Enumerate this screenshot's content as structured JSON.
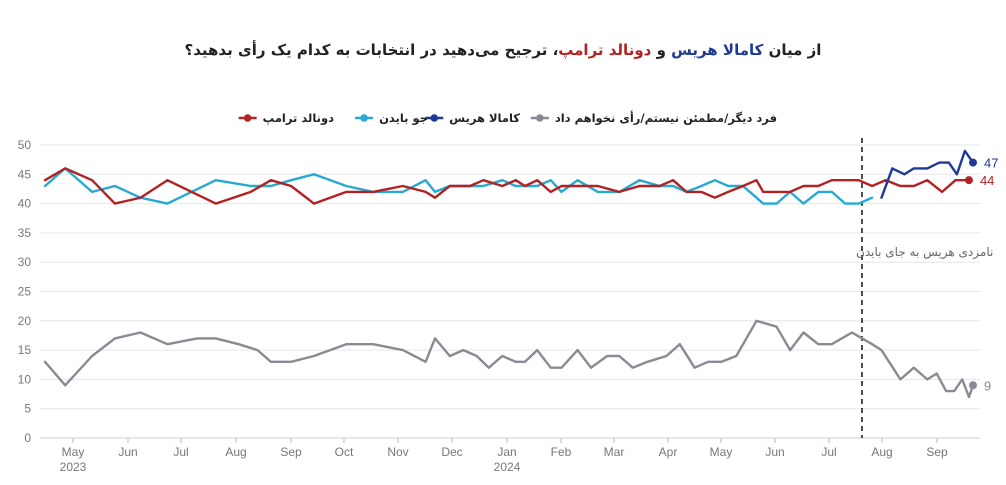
{
  "title": {
    "parts": [
      {
        "text": "از میان ",
        "color": "#222222"
      },
      {
        "text": "کامالا هریس",
        "color": "#1f3a93"
      },
      {
        "text": " و ",
        "color": "#222222"
      },
      {
        "text": "دونالد ترامپ",
        "color": "#b22222"
      },
      {
        "text": "، ترجیح می‌دهید در انتخابات به کدام یک رأی بدهید؟",
        "color": "#222222"
      }
    ]
  },
  "chart_data": {
    "type": "line",
    "title": "از میان کامالا هریس و دونالد ترامپ، ترجیح می‌دهید در انتخابات به کدام یک رأی بدهید؟",
    "ylim": [
      0,
      50
    ],
    "yticks": [
      "0",
      "5",
      "10",
      "15",
      "20",
      "25",
      "30",
      "35",
      "40",
      "45",
      "50"
    ],
    "grid": true,
    "legend_position": "top",
    "x_axis": {
      "months": [
        "May",
        "Jun",
        "Jul",
        "Aug",
        "Sep",
        "Oct",
        "Nov",
        "Dec",
        "Jan",
        "Feb",
        "Mar",
        "Apr",
        "May",
        "Jun",
        "Jul",
        "Aug",
        "Sep"
      ],
      "years": [
        "2023",
        "2024"
      ]
    },
    "series": [
      {
        "name": "دونالد ترامپ",
        "color": "#b22222",
        "dot_color": "#b22222",
        "end_label": "44",
        "points": [
          [
            "2023-04-10",
            44
          ],
          [
            "2023-04-25",
            46
          ],
          [
            "2023-05-15",
            44
          ],
          [
            "2023-06-01",
            40
          ],
          [
            "2023-06-20",
            41
          ],
          [
            "2023-07-10",
            44
          ],
          [
            "2023-08-15",
            40
          ],
          [
            "2023-09-10",
            42
          ],
          [
            "2023-09-25",
            44
          ],
          [
            "2023-10-10",
            43
          ],
          [
            "2023-10-27",
            40
          ],
          [
            "2023-11-20",
            42
          ],
          [
            "2023-12-10",
            42
          ],
          [
            "2024-01-01",
            43
          ],
          [
            "2024-01-18",
            42
          ],
          [
            "2024-01-25",
            41
          ],
          [
            "2024-02-05",
            43
          ],
          [
            "2024-02-20",
            43
          ],
          [
            "2024-03-01",
            44
          ],
          [
            "2024-03-15",
            43
          ],
          [
            "2024-03-25",
            44
          ],
          [
            "2024-04-01",
            43
          ],
          [
            "2024-04-10",
            44
          ],
          [
            "2024-04-20",
            42
          ],
          [
            "2024-04-28",
            43
          ],
          [
            "2024-05-10",
            43
          ],
          [
            "2024-05-25",
            43
          ],
          [
            "2024-06-10",
            42
          ],
          [
            "2024-06-25",
            43
          ],
          [
            "2024-07-10",
            43
          ],
          [
            "2024-07-20",
            44
          ],
          [
            "2024-07-30",
            42
          ],
          [
            "2024-08-10",
            42
          ],
          [
            "2024-08-20",
            41
          ],
          [
            "2024-08-30",
            42
          ],
          [
            "2024-09-10",
            43
          ],
          [
            "2024-09-20",
            44
          ],
          [
            "2024-09-25",
            42
          ],
          [
            "2024-10-05",
            42
          ],
          [
            "2024-10-15",
            42
          ],
          [
            "2024-10-25",
            43
          ],
          [
            "2024-11-05",
            43
          ],
          [
            "2024-11-15",
            44
          ],
          [
            "2024-11-25",
            44
          ],
          [
            "2024-12-05",
            44
          ],
          [
            "2024-12-15",
            43
          ],
          [
            "2024-12-25",
            44
          ],
          [
            "2025-01-05",
            43
          ],
          [
            "2025-01-15",
            43
          ],
          [
            "2025-01-25",
            44
          ],
          [
            "2025-02-05",
            42
          ],
          [
            "2025-02-15",
            44
          ],
          [
            "2025-02-25",
            44
          ]
        ]
      },
      {
        "name": "جو بایدن",
        "color": "#27a9d2",
        "dot_color": "#27a9d2",
        "end_label": "",
        "points": [
          [
            "2023-04-10",
            43
          ],
          [
            "2023-04-25",
            46
          ],
          [
            "2023-05-15",
            42
          ],
          [
            "2023-06-01",
            43
          ],
          [
            "2023-06-20",
            41
          ],
          [
            "2023-07-10",
            40
          ],
          [
            "2023-08-15",
            44
          ],
          [
            "2023-09-10",
            43
          ],
          [
            "2023-09-25",
            43
          ],
          [
            "2023-10-10",
            44
          ],
          [
            "2023-10-27",
            45
          ],
          [
            "2023-11-20",
            43
          ],
          [
            "2023-12-10",
            42
          ],
          [
            "2024-01-01",
            42
          ],
          [
            "2024-01-18",
            44
          ],
          [
            "2024-01-25",
            42
          ],
          [
            "2024-02-05",
            43
          ],
          [
            "2024-02-20",
            43
          ],
          [
            "2024-03-01",
            43
          ],
          [
            "2024-03-15",
            44
          ],
          [
            "2024-03-25",
            43
          ],
          [
            "2024-04-01",
            43
          ],
          [
            "2024-04-10",
            43
          ],
          [
            "2024-04-20",
            44
          ],
          [
            "2024-04-28",
            42
          ],
          [
            "2024-05-10",
            44
          ],
          [
            "2024-05-25",
            42
          ],
          [
            "2024-06-10",
            42
          ],
          [
            "2024-06-25",
            44
          ],
          [
            "2024-07-10",
            43
          ],
          [
            "2024-07-20",
            43
          ],
          [
            "2024-07-30",
            42
          ],
          [
            "2024-08-10",
            43
          ],
          [
            "2024-08-20",
            44
          ],
          [
            "2024-08-30",
            43
          ],
          [
            "2024-09-10",
            43
          ],
          [
            "2024-09-20",
            41
          ],
          [
            "2024-09-25",
            40
          ],
          [
            "2024-10-05",
            40
          ],
          [
            "2024-10-15",
            42
          ],
          [
            "2024-10-25",
            40
          ],
          [
            "2024-11-05",
            42
          ],
          [
            "2024-11-15",
            42
          ],
          [
            "2024-11-25",
            40
          ],
          [
            "2024-12-05",
            40
          ],
          [
            "2024-12-15",
            41
          ]
        ]
      },
      {
        "name": "کامالا هریس",
        "color": "#1f3a93",
        "dot_color": "#1f3a93",
        "end_label": "47",
        "points": [
          [
            "2024-12-22",
            41
          ],
          [
            "2024-12-30",
            46
          ],
          [
            "2025-01-08",
            45
          ],
          [
            "2025-01-15",
            46
          ],
          [
            "2025-01-25",
            46
          ],
          [
            "2025-02-03",
            47
          ],
          [
            "2025-02-10",
            47
          ],
          [
            "2025-02-16",
            45
          ],
          [
            "2025-02-22",
            49
          ],
          [
            "2025-02-28",
            47
          ]
        ]
      },
      {
        "name": "فرد دیگر/مطمئن نیستم/رأی نخواهم داد",
        "color": "#8a8a95",
        "dot_color": "#8a8a95",
        "end_label": "9",
        "points": [
          [
            "2023-04-10",
            13
          ],
          [
            "2023-04-25",
            9
          ],
          [
            "2023-05-15",
            14
          ],
          [
            "2023-06-01",
            17
          ],
          [
            "2023-06-20",
            18
          ],
          [
            "2023-07-10",
            16
          ],
          [
            "2023-08-01",
            17
          ],
          [
            "2023-08-15",
            17
          ],
          [
            "2023-09-01",
            16
          ],
          [
            "2023-09-15",
            15
          ],
          [
            "2023-09-25",
            13
          ],
          [
            "2023-10-10",
            13
          ],
          [
            "2023-10-27",
            14
          ],
          [
            "2023-11-20",
            16
          ],
          [
            "2023-12-10",
            16
          ],
          [
            "2024-01-01",
            15
          ],
          [
            "2024-01-18",
            13
          ],
          [
            "2024-01-25",
            17
          ],
          [
            "2024-02-05",
            14
          ],
          [
            "2024-02-15",
            15
          ],
          [
            "2024-02-25",
            14
          ],
          [
            "2024-03-05",
            12
          ],
          [
            "2024-03-15",
            14
          ],
          [
            "2024-03-25",
            13
          ],
          [
            "2024-04-01",
            13
          ],
          [
            "2024-04-10",
            15
          ],
          [
            "2024-04-20",
            12
          ],
          [
            "2024-04-28",
            12
          ],
          [
            "2024-05-10",
            15
          ],
          [
            "2024-05-20",
            12
          ],
          [
            "2024-06-01",
            14
          ],
          [
            "2024-06-10",
            14
          ],
          [
            "2024-06-20",
            12
          ],
          [
            "2024-07-01",
            13
          ],
          [
            "2024-07-15",
            14
          ],
          [
            "2024-07-25",
            16
          ],
          [
            "2024-08-05",
            12
          ],
          [
            "2024-08-15",
            13
          ],
          [
            "2024-08-25",
            13
          ],
          [
            "2024-09-05",
            14
          ],
          [
            "2024-09-20",
            20
          ],
          [
            "2024-10-05",
            19
          ],
          [
            "2024-10-15",
            15
          ],
          [
            "2024-10-25",
            18
          ],
          [
            "2024-11-05",
            16
          ],
          [
            "2024-11-15",
            16
          ],
          [
            "2024-11-30",
            18
          ],
          [
            "2024-12-15",
            16
          ],
          [
            "2024-12-22",
            15
          ],
          [
            "2025-01-05",
            10
          ],
          [
            "2025-01-15",
            12
          ],
          [
            "2025-01-25",
            10
          ],
          [
            "2025-02-01",
            11
          ],
          [
            "2025-02-08",
            8
          ],
          [
            "2025-02-14",
            8
          ],
          [
            "2025-02-20",
            10
          ],
          [
            "2025-02-25",
            7
          ],
          [
            "2025-02-28",
            9
          ]
        ]
      }
    ],
    "annotations": [
      {
        "text": "نامزدی هریس به جای بایدن",
        "x": "2024-12-22",
        "style": "dashed-vertical-line"
      }
    ]
  }
}
